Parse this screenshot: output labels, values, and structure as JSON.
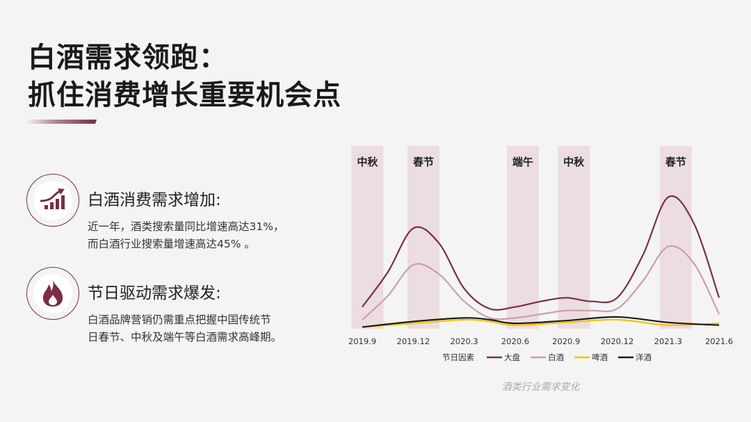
{
  "title": {
    "line1": "白酒需求领跑：",
    "line2": "抓住消费增长重要机会点"
  },
  "features": [
    {
      "icon": "growth-chart-icon",
      "heading": "白酒消费需求增加:",
      "desc_line1": "近一年，酒类搜索量同比增速高达31%，",
      "desc_line2": "而白酒行业搜索量增速高达45% 。"
    },
    {
      "icon": "flame-icon",
      "heading": "节日驱动需求爆发:",
      "desc_line1": "白酒品牌营销仍需重点把握中国传统节",
      "desc_line2": "日春节、中秋及端午等白酒需求高峰期。"
    }
  ],
  "chart_data": {
    "type": "line",
    "title": "",
    "xlabel": "",
    "ylabel": "",
    "x": [
      "2019.9",
      "2019.12",
      "2020.3",
      "2020.6",
      "2020.9",
      "2020.12",
      "2021.3",
      "2021.6"
    ],
    "ylim": [
      0,
      100
    ],
    "grid": false,
    "legend_position": "bottom",
    "legend_title": "节日因素",
    "festivals": [
      {
        "label": "中秋",
        "at": 0.1
      },
      {
        "label": "春节",
        "at": 1.2
      },
      {
        "label": "端午",
        "at": 3.15
      },
      {
        "label": "中秋",
        "at": 4.15
      },
      {
        "label": "春节",
        "at": 6.15
      }
    ],
    "series": [
      {
        "name": "大盘",
        "color": "#7a2d43",
        "points": [
          [
            0,
            12
          ],
          [
            0.5,
            31
          ],
          [
            1,
            55
          ],
          [
            1.5,
            47
          ],
          [
            2,
            22
          ],
          [
            2.5,
            11
          ],
          [
            3,
            12
          ],
          [
            3.5,
            15
          ],
          [
            4,
            17
          ],
          [
            4.5,
            15
          ],
          [
            5,
            17
          ],
          [
            5.5,
            40
          ],
          [
            6,
            72
          ],
          [
            6.5,
            58
          ],
          [
            7,
            17
          ]
        ]
      },
      {
        "name": "白酒",
        "color": "#cf9da8",
        "points": [
          [
            0,
            5
          ],
          [
            0.5,
            18
          ],
          [
            1,
            35
          ],
          [
            1.5,
            30
          ],
          [
            2,
            15
          ],
          [
            2.5,
            6
          ],
          [
            3,
            6
          ],
          [
            3.5,
            8
          ],
          [
            4,
            10
          ],
          [
            4.5,
            10
          ],
          [
            5,
            11
          ],
          [
            5.5,
            26
          ],
          [
            6,
            45
          ],
          [
            6.5,
            36
          ],
          [
            7,
            8
          ]
        ]
      },
      {
        "name": "啤酒",
        "color": "#f5c200",
        "points": [
          [
            0,
            1
          ],
          [
            1,
            3
          ],
          [
            2,
            5
          ],
          [
            2.5,
            4
          ],
          [
            3,
            2
          ],
          [
            4,
            3.5
          ],
          [
            5,
            5
          ],
          [
            6,
            2
          ],
          [
            7,
            3
          ]
        ]
      },
      {
        "name": "洋酒",
        "color": "#1a1a1a",
        "points": [
          [
            0,
            1
          ],
          [
            1,
            4
          ],
          [
            2,
            6
          ],
          [
            2.5,
            5
          ],
          [
            3,
            3
          ],
          [
            4,
            4.5
          ],
          [
            5,
            6.5
          ],
          [
            6,
            3.5
          ],
          [
            7,
            2
          ]
        ]
      }
    ]
  },
  "caption": "酒类行业需求变化",
  "colors": {
    "accent": "#7a2d43",
    "festival_band": "#ecdde1"
  }
}
